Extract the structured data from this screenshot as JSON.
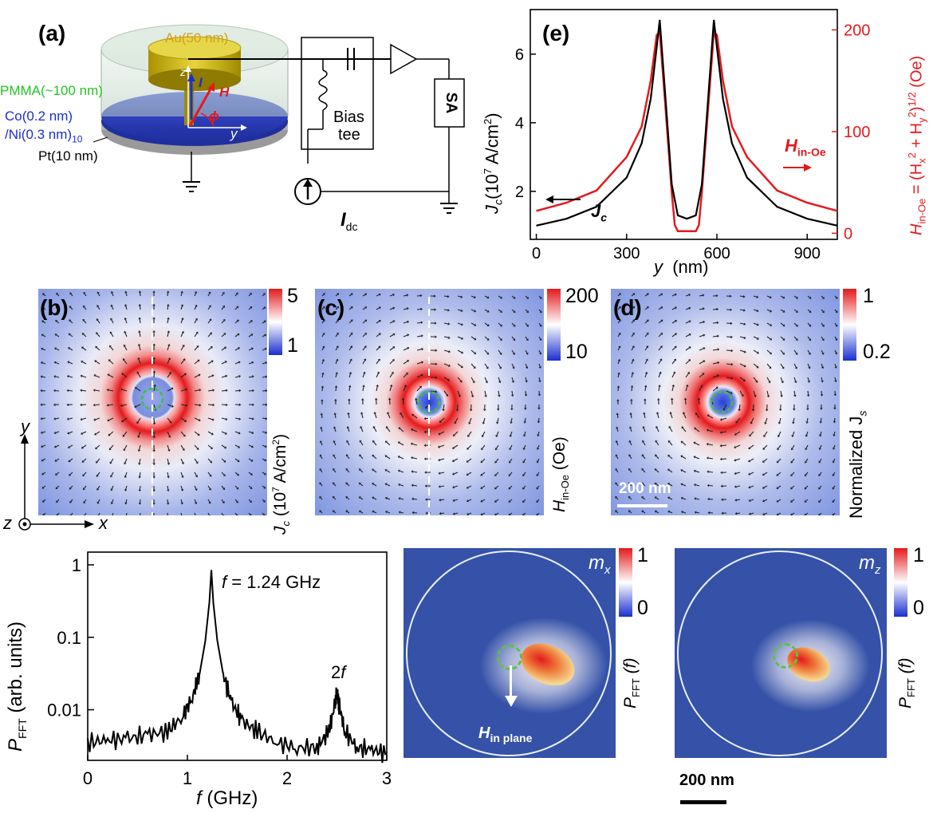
{
  "panel_a": {
    "label": "(a)",
    "au": "Au(50 nm)",
    "pmma": "PMMA(~100 nm)",
    "co": "Co(0.2 nm)",
    "ni": "/Ni(0.3 nm)",
    "ni_sub": "10",
    "pt": "Pt(10 nm)",
    "z": "z",
    "i": "I",
    "h": "H",
    "phi": "ϕ",
    "y": "y",
    "bias1": "Bias",
    "bias2": "tee",
    "sa": "SA",
    "idc": "I",
    "idc_sub": "dc"
  },
  "panel_b": {
    "label": "(b)",
    "cbar_max": "5",
    "cbar_min": "1",
    "cbar_title": "J",
    "cbar_title_sub": "c",
    "cbar_title_rest": " (10",
    "cbar_title_sup": "7",
    "cbar_title_end": " A/cm",
    "cbar_title_sup2": "2",
    "cbar_title_close": ")",
    "axis_y": "y",
    "axis_x": "x",
    "axis_z": "z"
  },
  "panel_c": {
    "label": "(c)",
    "cbar_max": "200",
    "cbar_min": "10",
    "cbar_title": "H",
    "cbar_title_sub": "in-Oe",
    "cbar_title_rest": " (Oe)"
  },
  "panel_d": {
    "label": "(d)",
    "cbar_max": "1",
    "cbar_min": "0.2",
    "cbar_title": "Normalized  J",
    "cbar_title_sub": "s",
    "scalebar": "200 nm"
  },
  "panel_e": {
    "label": "(e)",
    "xlabel": "y  (nm)",
    "ylabel_left": "J",
    "ylabel_left_sub": "c",
    "ylabel_left_rest": "(10",
    "ylabel_left_sup": "7",
    "ylabel_left_end": " A/cm",
    "ylabel_left_sup2": "2",
    "ylabel_left_close": ")",
    "ylabel_right": "H",
    "ylabel_right_sub": "in-Oe",
    "ylabel_right_rest": " = (H",
    "ylabel_right_sub2": "x",
    "ylabel_right_sup2": "2",
    "ylabel_right_mid": " + H",
    "ylabel_right_sub3": "y",
    "ylabel_right_sup3": "2",
    "ylabel_right_end": ")",
    "ylabel_right_sup4": "1/2",
    "ylabel_right_close": " (Oe)",
    "legend_jc": "J",
    "legend_jc_sub": "c",
    "legend_h": "H",
    "legend_h_sub": "in-Oe",
    "x_ticks": [
      "0",
      "300",
      "600",
      "900"
    ],
    "y_left_ticks": [
      "2",
      "4",
      "6"
    ],
    "y_right_ticks": [
      "0",
      "100",
      "200"
    ]
  },
  "panel_spectrum": {
    "xlabel": "f",
    "xlabel_rest": " (GHz)",
    "ylabel": "P",
    "ylabel_sub": "FFT",
    "ylabel_rest": " (arb. units)",
    "peak1_label": "f",
    "peak1_rest": " = 1.24 GHz",
    "peak2_label": "2",
    "peak2_italic": "f",
    "x_ticks": [
      "0",
      "1",
      "2",
      "3"
    ],
    "y_ticks": [
      "1",
      "0.1",
      "0.01"
    ]
  },
  "panel_mx": {
    "title": "m",
    "title_sub": "x",
    "cbar_max": "1",
    "cbar_min": "0",
    "cbar_title": "P",
    "cbar_title_sub": "FFT",
    "cbar_title_rest": " (f)",
    "arrow_label": "H",
    "arrow_label_sub": "in plane"
  },
  "panel_mz": {
    "title": "m",
    "title_sub": "z",
    "cbar_max": "1",
    "cbar_min": "0",
    "cbar_title": "P",
    "cbar_title_sub": "FFT",
    "cbar_title_rest": " (f)",
    "scalebar": "200 nm"
  },
  "colors": {
    "red": "#e31a1c",
    "blue": "#1a2fd0",
    "map_bg": "#7f95e0",
    "dark_bg": "#3552a8",
    "pmma_text": "#22c422",
    "au_text": "#d4a017"
  },
  "chart_data": [
    {
      "type": "line",
      "xlabel": "y  (nm)",
      "ylabel": "Jc (10^7 A/cm^2)",
      "ylabel_right": "Hin-Oe = (Hx^2 + Hy^2)^1/2 (Oe)",
      "xlim": [
        -20,
        1000
      ],
      "ylim": [
        0.6,
        7.3
      ],
      "ylim_right": [
        -6,
        220
      ],
      "series": [
        {
          "name": "Jc",
          "axis": "left",
          "x": [
            0,
            100,
            200,
            300,
            350,
            380,
            400,
            410,
            430,
            450,
            470,
            500,
            530,
            550,
            570,
            590,
            600,
            620,
            650,
            700,
            800,
            900,
            1000
          ],
          "y": [
            1.0,
            1.2,
            1.55,
            2.4,
            3.4,
            4.7,
            6.2,
            7.0,
            4.6,
            2.2,
            1.3,
            1.2,
            1.3,
            2.2,
            4.6,
            7.0,
            6.2,
            4.7,
            3.4,
            2.4,
            1.55,
            1.2,
            1.0
          ]
        },
        {
          "name": "Hin-Oe",
          "axis": "right",
          "x": [
            0,
            100,
            200,
            300,
            350,
            380,
            400,
            410,
            430,
            450,
            460,
            470,
            480,
            500,
            520,
            530,
            540,
            550,
            570,
            590,
            600,
            620,
            650,
            700,
            800,
            900,
            1000
          ],
          "y": [
            22,
            30,
            42,
            75,
            105,
            150,
            195,
            198,
            120,
            40,
            8,
            2,
            2,
            2,
            2,
            2,
            8,
            40,
            120,
            198,
            195,
            150,
            105,
            75,
            42,
            30,
            22
          ]
        }
      ]
    },
    {
      "type": "line",
      "xlabel": "f (GHz)",
      "ylabel": "PFFT (arb. units)",
      "y_scale": "log",
      "xlim": [
        0,
        3
      ],
      "ylim": [
        0.002,
        1.5
      ],
      "series": [
        {
          "x": [
            0,
            0.2,
            0.4,
            0.6,
            0.8,
            0.95,
            1.05,
            1.12,
            1.18,
            1.22,
            1.24,
            1.26,
            1.3,
            1.36,
            1.45,
            1.55,
            1.7,
            1.9,
            2.1,
            2.3,
            2.42,
            2.48,
            2.5,
            2.52,
            2.58,
            2.7,
            2.85,
            3.0
          ],
          "y": [
            0.0035,
            0.0038,
            0.004,
            0.0045,
            0.005,
            0.008,
            0.015,
            0.03,
            0.09,
            0.3,
            0.85,
            0.3,
            0.09,
            0.03,
            0.012,
            0.007,
            0.005,
            0.0035,
            0.003,
            0.003,
            0.005,
            0.012,
            0.018,
            0.012,
            0.005,
            0.003,
            0.0028,
            0.0025
          ]
        }
      ]
    }
  ]
}
